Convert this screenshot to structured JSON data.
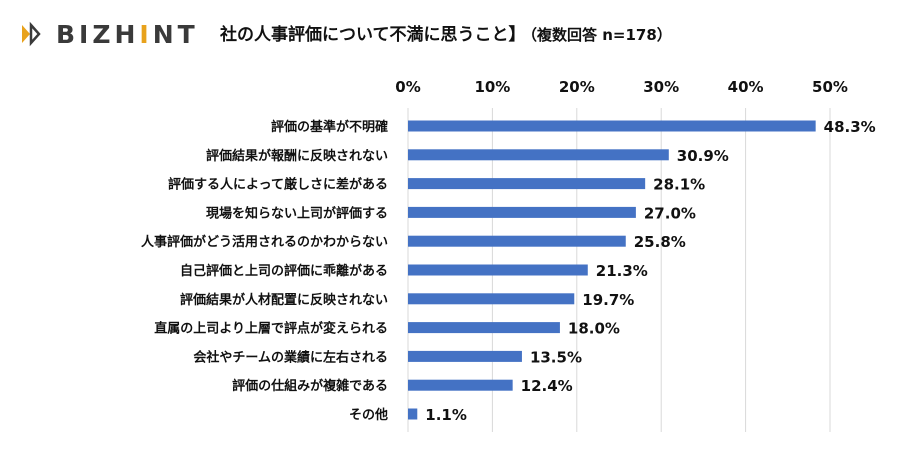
{
  "brand": {
    "logo_text_left": "BIZH",
    "logo_text_accent": "I",
    "logo_text_right": "NT"
  },
  "title": {
    "main": "社の人事評価について不満に思うこと】",
    "sub": "（複数回答 n=178）"
  },
  "colors": {
    "bar": "#4472c4",
    "grid": "#d9d9d9",
    "text": "#111111",
    "logo_accent": "#e8a21c"
  },
  "chart_data": {
    "type": "bar",
    "orientation": "horizontal",
    "categories": [
      "評価の基準が不明確",
      "評価結果が報酬に反映されない",
      "評価する人によって厳しさに差がある",
      "現場を知らない上司が評価する",
      "人事評価がどう活用されるのかわからない",
      "自己評価と上司の評価に乖離がある",
      "評価結果が人材配置に反映されない",
      "直属の上司より上層で評点が変えられる",
      "会社やチームの業績に左右される",
      "評価の仕組みが複雑である",
      "その他"
    ],
    "values": [
      48.3,
      30.9,
      28.1,
      27.0,
      25.8,
      21.3,
      19.7,
      18.0,
      13.5,
      12.4,
      1.1
    ],
    "value_labels": [
      "48.3%",
      "30.9%",
      "28.1%",
      "27.0%",
      "25.8%",
      "21.3%",
      "19.7%",
      "18.0%",
      "13.5%",
      "12.4%",
      "1.1%"
    ],
    "x_ticks": [
      "0%",
      "10%",
      "20%",
      "30%",
      "40%",
      "50%"
    ],
    "xlim": [
      0,
      50
    ],
    "axis_position": "top",
    "grid": true
  }
}
